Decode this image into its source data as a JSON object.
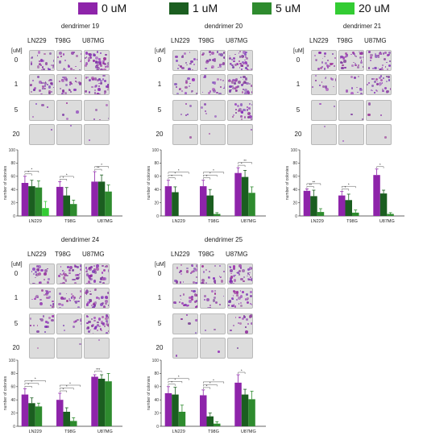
{
  "legend": {
    "items": [
      {
        "label": "0 uM",
        "color": "#8e24aa"
      },
      {
        "label": "1 uM",
        "color": "#1b5e20"
      },
      {
        "label": "5 uM",
        "color": "#2e8b2e"
      },
      {
        "label": "20 uM",
        "color": "#33cc33"
      }
    ]
  },
  "plate": {
    "columns": [
      "LN229",
      "T98G",
      "U87MG"
    ],
    "unit_label": "[uM]",
    "rows": [
      "0",
      "1",
      "5",
      "20"
    ]
  },
  "chart_data": [
    {
      "title": "dendrimer 19",
      "type": "bar",
      "categories": [
        "LN229",
        "T98G",
        "U87MG"
      ],
      "ylabel": "number of colonies",
      "ylim": [
        0,
        100
      ],
      "yticks": [
        0,
        20,
        40,
        60,
        80,
        100
      ],
      "series": [
        {
          "name": "0 uM",
          "values": [
            50,
            44,
            52
          ],
          "errors": [
            10,
            8,
            15
          ]
        },
        {
          "name": "1 uM",
          "values": [
            45,
            31,
            52
          ],
          "errors": [
            9,
            12,
            10
          ]
        },
        {
          "name": "5 uM",
          "values": [
            43,
            18,
            37
          ],
          "errors": [
            10,
            6,
            10
          ]
        },
        {
          "name": "20 uM",
          "values": [
            12,
            0,
            0
          ],
          "errors": [
            10,
            0,
            0
          ]
        }
      ],
      "significance": [
        "*",
        "*",
        "*",
        "*",
        "**",
        "*"
      ]
    },
    {
      "title": "dendrimer 20",
      "type": "bar",
      "categories": [
        "LN229",
        "T98G",
        "U87MG"
      ],
      "ylabel": "number of colonies",
      "ylim": [
        0,
        100
      ],
      "yticks": [
        0,
        20,
        40,
        60,
        80,
        100
      ],
      "series": [
        {
          "name": "0 uM",
          "values": [
            45,
            45,
            65
          ],
          "errors": [
            9,
            9,
            8
          ]
        },
        {
          "name": "1 uM",
          "values": [
            36,
            31,
            59
          ],
          "errors": [
            8,
            9,
            10
          ]
        },
        {
          "name": "5 uM",
          "values": [
            0,
            3,
            35
          ],
          "errors": [
            0,
            2,
            9
          ]
        },
        {
          "name": "20 uM",
          "values": [
            0,
            0,
            0
          ],
          "errors": [
            0,
            0,
            0
          ]
        }
      ],
      "significance": [
        "*",
        "*",
        "*",
        "*",
        "*",
        "*",
        "*",
        "**"
      ]
    },
    {
      "title": "dendrimer 21",
      "type": "bar",
      "categories": [
        "LN229",
        "T98G",
        "U87MG"
      ],
      "ylabel": "number of colonies",
      "ylim": [
        0,
        100
      ],
      "yticks": [
        0,
        20,
        40,
        60,
        80,
        100
      ],
      "series": [
        {
          "name": "0 uM",
          "values": [
            38,
            31,
            62
          ],
          "errors": [
            3,
            6,
            9
          ]
        },
        {
          "name": "1 uM",
          "values": [
            30,
            24,
            34
          ],
          "errors": [
            9,
            9,
            5
          ]
        },
        {
          "name": "5 uM",
          "values": [
            6,
            5,
            3
          ],
          "errors": [
            5,
            4,
            2
          ]
        },
        {
          "name": "20 uM",
          "values": [
            0,
            0,
            0
          ],
          "errors": [
            0,
            0,
            0
          ]
        }
      ],
      "significance": [
        "**",
        "**",
        "*",
        "*",
        "*"
      ]
    },
    {
      "title": "dendrimer 24",
      "type": "bar",
      "categories": [
        "LN229",
        "T98G",
        "U87MG"
      ],
      "ylabel": "number of colonies",
      "ylim": [
        0,
        100
      ],
      "yticks": [
        0,
        20,
        40,
        60,
        80,
        100
      ],
      "series": [
        {
          "name": "0 uM",
          "values": [
            48,
            40,
            75
          ],
          "errors": [
            9,
            10,
            3
          ]
        },
        {
          "name": "1 uM",
          "values": [
            35,
            22,
            72
          ],
          "errors": [
            8,
            6,
            6
          ]
        },
        {
          "name": "5 uM",
          "values": [
            30,
            8,
            68
          ],
          "errors": [
            5,
            5,
            12
          ]
        },
        {
          "name": "20 uM",
          "values": [
            0,
            0,
            0
          ],
          "errors": [
            0,
            0,
            0
          ]
        }
      ],
      "significance": [
        "*",
        "*",
        "*",
        "*",
        "*",
        "*",
        "***"
      ]
    },
    {
      "title": "dendrimer 25",
      "type": "bar",
      "categories": [
        "LN229",
        "T98G",
        "U87MG"
      ],
      "ylabel": "number of colonies",
      "ylim": [
        0,
        100
      ],
      "yticks": [
        0,
        20,
        40,
        60,
        80,
        100
      ],
      "series": [
        {
          "name": "0 uM",
          "values": [
            50,
            47,
            66
          ],
          "errors": [
            10,
            8,
            12
          ]
        },
        {
          "name": "1 uM",
          "values": [
            48,
            15,
            48
          ],
          "errors": [
            11,
            5,
            8
          ]
        },
        {
          "name": "5 uM",
          "values": [
            22,
            4,
            41
          ],
          "errors": [
            10,
            3,
            12
          ]
        },
        {
          "name": "20 uM",
          "values": [
            0,
            0,
            0
          ],
          "errors": [
            0,
            0,
            0
          ]
        }
      ],
      "significance": [
        "*",
        "*",
        "*",
        "*",
        "*",
        "*",
        "*"
      ]
    }
  ],
  "plates": [
    [
      [
        0.55,
        0.45,
        0.95
      ],
      [
        0.65,
        0.55,
        0.95
      ],
      [
        0.08,
        0.08,
        0.1
      ],
      [
        0.02,
        0.02,
        0.02
      ]
    ],
    [
      [
        0.45,
        0.55,
        0.95
      ],
      [
        0.4,
        0.45,
        0.9
      ],
      [
        0.1,
        0.1,
        0.6
      ],
      [
        0.02,
        0.02,
        0.02
      ]
    ],
    [
      [
        0.5,
        0.75,
        0.75
      ],
      [
        0.3,
        0.25,
        0.7
      ],
      [
        0.05,
        0.05,
        0.06
      ],
      [
        0.02,
        0.02,
        0.02
      ]
    ],
    [
      [
        0.55,
        0.85,
        0.85
      ],
      [
        0.5,
        0.5,
        0.85
      ],
      [
        0.35,
        0.25,
        0.95
      ],
      [
        0.02,
        0.02,
        0.02
      ]
    ],
    [
      [
        0.5,
        0.45,
        0.85
      ],
      [
        0.55,
        0.3,
        0.7
      ],
      [
        0.1,
        0.05,
        0.35
      ],
      [
        0.02,
        0.02,
        0.02
      ]
    ]
  ]
}
